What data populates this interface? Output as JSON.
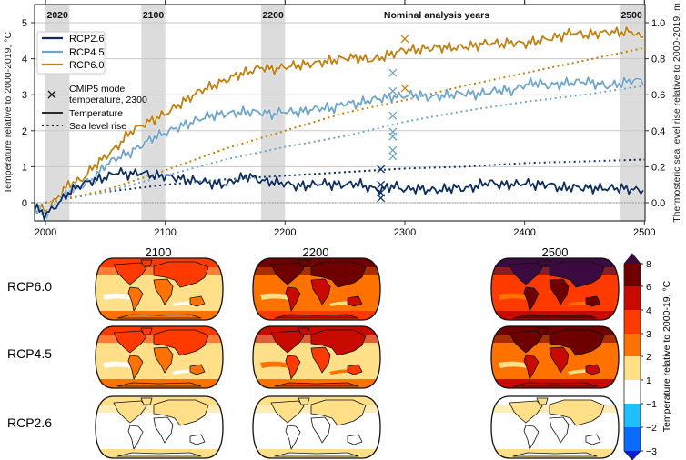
{
  "chart_data": [
    {
      "type": "line",
      "xlim": [
        1991,
        2500
      ],
      "ylim": [
        -0.5,
        5.5
      ],
      "ylim_right": [
        -0.1,
        1.1
      ],
      "ylabel": "Temperature relative to 2000-2019, °C",
      "ylabel_right": "Thermosteric sea level rise relative to 2000-2019, m",
      "x_ticks": [
        2000,
        2100,
        2200,
        2300,
        2400,
        2500
      ],
      "y_ticks": [
        0,
        1,
        2,
        3,
        4,
        5
      ],
      "y_ticks_right": [
        "0.0",
        "0.2",
        "0.4",
        "0.6",
        "0.8",
        "1.0"
      ],
      "grid": true,
      "legend_position": "top-left",
      "colors": {
        "RCP2.6": "#0b2d5e",
        "RCP4.5": "#6fa5ca",
        "RCP6.0": "#c0800f"
      },
      "analysis_bands": [
        {
          "label": "2020",
          "from": 2000,
          "to": 2020
        },
        {
          "label": "2100",
          "from": 2080,
          "to": 2100
        },
        {
          "label": "2200",
          "from": 2180,
          "to": 2200
        },
        {
          "label": "2500",
          "from": 2480,
          "to": 2500
        }
      ],
      "bands_title": "Nominal analysis years",
      "legend": {
        "series": [
          "RCP2.6",
          "RCP4.5",
          "RCP6.0"
        ],
        "marker_label": "CMIP5 model temperature, 2300",
        "marker_label_lines": [
          "CMIP5 model",
          "temperature, 2300"
        ],
        "solid_label": "Temperature",
        "dotted_label": "Sea level rise"
      },
      "temperature_x": [
        1991,
        2000,
        2010,
        2020,
        2030,
        2040,
        2050,
        2060,
        2070,
        2080,
        2090,
        2100,
        2110,
        2120,
        2130,
        2140,
        2150,
        2160,
        2170,
        2180,
        2190,
        2200,
        2210,
        2220,
        2230,
        2240,
        2250,
        2260,
        2270,
        2280,
        2290,
        2300,
        2310,
        2320,
        2330,
        2340,
        2350,
        2360,
        2370,
        2380,
        2390,
        2400,
        2410,
        2420,
        2430,
        2440,
        2450,
        2460,
        2470,
        2480,
        2490,
        2500
      ],
      "temperature_series": [
        {
          "name": "RCP2.6",
          "values": [
            -0.1,
            -0.3,
            0.0,
            0.35,
            0.55,
            0.65,
            0.7,
            0.85,
            0.75,
            0.8,
            0.7,
            0.7,
            0.65,
            0.6,
            0.6,
            0.55,
            0.55,
            0.7,
            0.8,
            0.65,
            0.6,
            0.55,
            0.45,
            0.45,
            0.5,
            0.45,
            0.45,
            0.5,
            0.4,
            0.35,
            0.5,
            0.4,
            0.45,
            0.4,
            0.4,
            0.45,
            0.4,
            0.45,
            0.55,
            0.45,
            0.45,
            0.5,
            0.45,
            0.5,
            0.4,
            0.45,
            0.45,
            0.45,
            0.45,
            0.45,
            0.4,
            0.35
          ]
        },
        {
          "name": "RCP4.5",
          "values": [
            -0.2,
            -0.35,
            0.0,
            0.35,
            0.5,
            0.7,
            1.1,
            1.3,
            1.4,
            1.6,
            1.8,
            1.9,
            2.05,
            2.15,
            2.3,
            2.4,
            2.45,
            2.5,
            2.55,
            2.55,
            2.5,
            2.6,
            2.55,
            2.6,
            2.65,
            2.6,
            2.75,
            2.7,
            2.8,
            2.85,
            2.9,
            2.95,
            3.0,
            2.95,
            3.0,
            3.05,
            3.1,
            3.05,
            3.1,
            3.15,
            3.1,
            3.25,
            3.3,
            3.2,
            3.25,
            3.3,
            3.35,
            3.3,
            3.25,
            3.35,
            3.45,
            3.45
          ]
        },
        {
          "name": "RCP6.0",
          "values": [
            -0.1,
            -0.3,
            0.1,
            0.5,
            0.6,
            1.0,
            1.3,
            1.6,
            2.0,
            2.2,
            2.35,
            2.5,
            2.7,
            2.9,
            3.1,
            3.2,
            3.35,
            3.5,
            3.6,
            3.75,
            3.7,
            3.8,
            3.85,
            3.9,
            3.95,
            4.0,
            4.05,
            4.05,
            3.95,
            4.0,
            4.1,
            4.2,
            4.2,
            4.25,
            4.3,
            4.3,
            4.35,
            4.4,
            4.5,
            4.45,
            4.5,
            4.45,
            4.5,
            4.55,
            4.6,
            4.7,
            4.6,
            4.65,
            4.7,
            4.7,
            4.75,
            4.55
          ]
        }
      ],
      "sea_level_x": [
        2000,
        2050,
        2100,
        2150,
        2200,
        2250,
        2300,
        2350,
        2400,
        2450,
        2500
      ],
      "sea_level_series": [
        {
          "name": "RCP2.6",
          "values": [
            0,
            0.06,
            0.1,
            0.13,
            0.15,
            0.17,
            0.19,
            0.2,
            0.22,
            0.23,
            0.24
          ]
        },
        {
          "name": "RCP4.5",
          "values": [
            0,
            0.06,
            0.15,
            0.24,
            0.31,
            0.37,
            0.45,
            0.51,
            0.56,
            0.6,
            0.65
          ]
        },
        {
          "name": "RCP6.0",
          "values": [
            0,
            0.07,
            0.18,
            0.3,
            0.4,
            0.5,
            0.57,
            0.65,
            0.72,
            0.79,
            0.86
          ]
        }
      ],
      "cmip5_markers": [
        {
          "name": "RCP2.6",
          "year": 2280,
          "values": [
            0.93,
            0.5,
            0.28,
            0.13
          ]
        },
        {
          "name": "RCP4.5",
          "year": 2290,
          "values": [
            3.61,
            3.1,
            2.42,
            1.97,
            1.84,
            1.46,
            1.29
          ]
        },
        {
          "name": "RCP6.0",
          "year": 2300,
          "values": [
            4.55,
            3.18
          ]
        }
      ]
    },
    {
      "type": "heatmap",
      "columns": [
        "2100",
        "2200",
        "2500"
      ],
      "rows": [
        "RCP6.0",
        "RCP4.5",
        "RCP2.6"
      ],
      "colorbar": {
        "label": "Temperature relative to 2000-19, °C",
        "ticks": [
          "8",
          "6",
          "4",
          "3",
          "2",
          "1",
          "−1",
          "−2",
          "−3"
        ],
        "levels": [
          {
            "range": ">8",
            "color": "#3a0a40"
          },
          {
            "range": "6 to 8",
            "color": "#6e0000"
          },
          {
            "range": "4 to 6",
            "color": "#c80a00"
          },
          {
            "range": "3 to 4",
            "color": "#ff3a00"
          },
          {
            "range": "2 to 3",
            "color": "#ff7200"
          },
          {
            "range": "1 to 2",
            "color": "#ffdf88"
          },
          {
            "range": "-1 to 1",
            "color": "#ffffff"
          },
          {
            "range": "-2 to -1",
            "color": "#1ec0ff"
          },
          {
            "range": "-3 to -2",
            "color": "#0a6cff"
          },
          {
            "range": "<-3",
            "color": "#0020d8"
          }
        ]
      },
      "maps": [
        {
          "scenario": "RCP6.0",
          "year": "2100",
          "ocean": "#ffdf88",
          "arctic": "#ff3a00",
          "land": "#ff7200",
          "north_land": "#ff3a00",
          "stripe": "#ffffff",
          "south": "#ff7200"
        },
        {
          "scenario": "RCP6.0",
          "year": "2200",
          "ocean": "#ff7200",
          "arctic": "#6e0000",
          "land": "#c80a00",
          "north_land": "#6e0000",
          "stripe": "#ffdf88",
          "south": "#ff3a00"
        },
        {
          "scenario": "RCP6.0",
          "year": "2500",
          "ocean": "#ff3a00",
          "arctic": "#3a0a40",
          "land": "#6e0000",
          "north_land": "#3a0a40",
          "stripe": "#ff7200",
          "south": "#c80a00"
        },
        {
          "scenario": "RCP4.5",
          "year": "2100",
          "ocean": "#ffdf88",
          "arctic": "#ff3a00",
          "land": "#ff7200",
          "north_land": "#ff3a00",
          "stripe": "#ffffff",
          "south": "#ff7200"
        },
        {
          "scenario": "RCP4.5",
          "year": "2200",
          "ocean": "#ffdf88",
          "arctic": "#c80a00",
          "land": "#ff3a00",
          "north_land": "#c80a00",
          "stripe": "#ff7200",
          "south": "#ff7200"
        },
        {
          "scenario": "RCP4.5",
          "year": "2500",
          "ocean": "#ff7200",
          "arctic": "#6e0000",
          "land": "#c80a00",
          "north_land": "#6e0000",
          "stripe": "#ffdf88",
          "south": "#c80a00"
        },
        {
          "scenario": "RCP2.6",
          "year": "2100",
          "ocean": "#ffffff",
          "arctic": "#ffdf88",
          "land": "#ffffff",
          "north_land": "#ffdf88",
          "stripe": "#ffffff",
          "south": "#ffdf88"
        },
        {
          "scenario": "RCP2.6",
          "year": "2200",
          "ocean": "#ffffff",
          "arctic": "#ffdf88",
          "land": "#ffffff",
          "north_land": "#ffdf88",
          "stripe": "#ffffff",
          "south": "#ffdf88"
        },
        {
          "scenario": "RCP2.6",
          "year": "2500",
          "ocean": "#ffffff",
          "arctic": "#ffffff",
          "land": "#ffffff",
          "north_land": "#ffdf88",
          "stripe": "#ffffff",
          "south": "#ffdf88"
        }
      ]
    }
  ]
}
